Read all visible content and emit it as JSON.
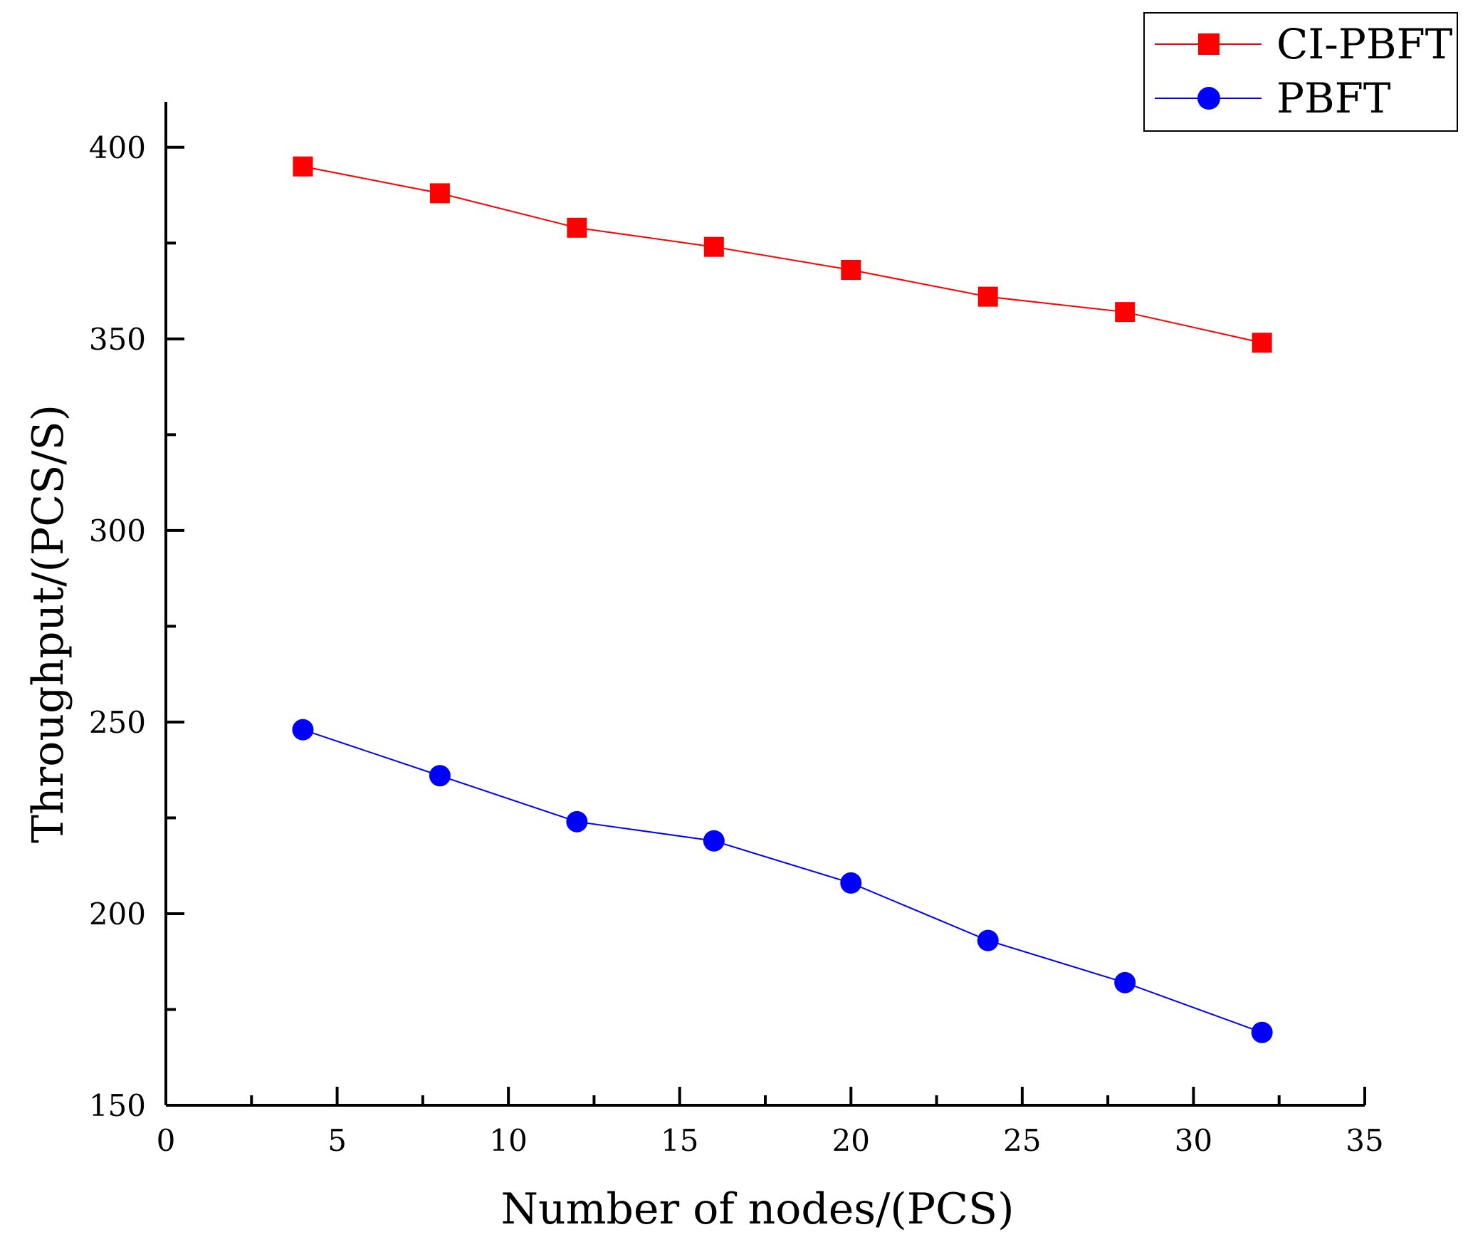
{
  "chart_data": {
    "type": "line",
    "title": "",
    "xlabel": "Number of nodes/(PCS)",
    "ylabel": "Throughput/(PCS/S)",
    "xlim": [
      0,
      35
    ],
    "ylim": [
      150,
      410
    ],
    "x_ticks": [
      0,
      5,
      10,
      15,
      20,
      25,
      30,
      35
    ],
    "y_ticks": [
      150,
      200,
      250,
      300,
      350,
      400
    ],
    "x": [
      4,
      8,
      12,
      16,
      20,
      24,
      28,
      32
    ],
    "series": [
      {
        "name": "CI-PBFT",
        "color": "#ff0000",
        "marker": "square",
        "values": [
          395,
          388,
          379,
          374,
          368,
          361,
          357,
          349
        ]
      },
      {
        "name": "PBFT",
        "color": "#0000ff",
        "marker": "circle",
        "values": [
          248,
          236,
          224,
          219,
          208,
          193,
          182,
          169
        ]
      }
    ],
    "legend_position": "top-right",
    "grid": false
  }
}
